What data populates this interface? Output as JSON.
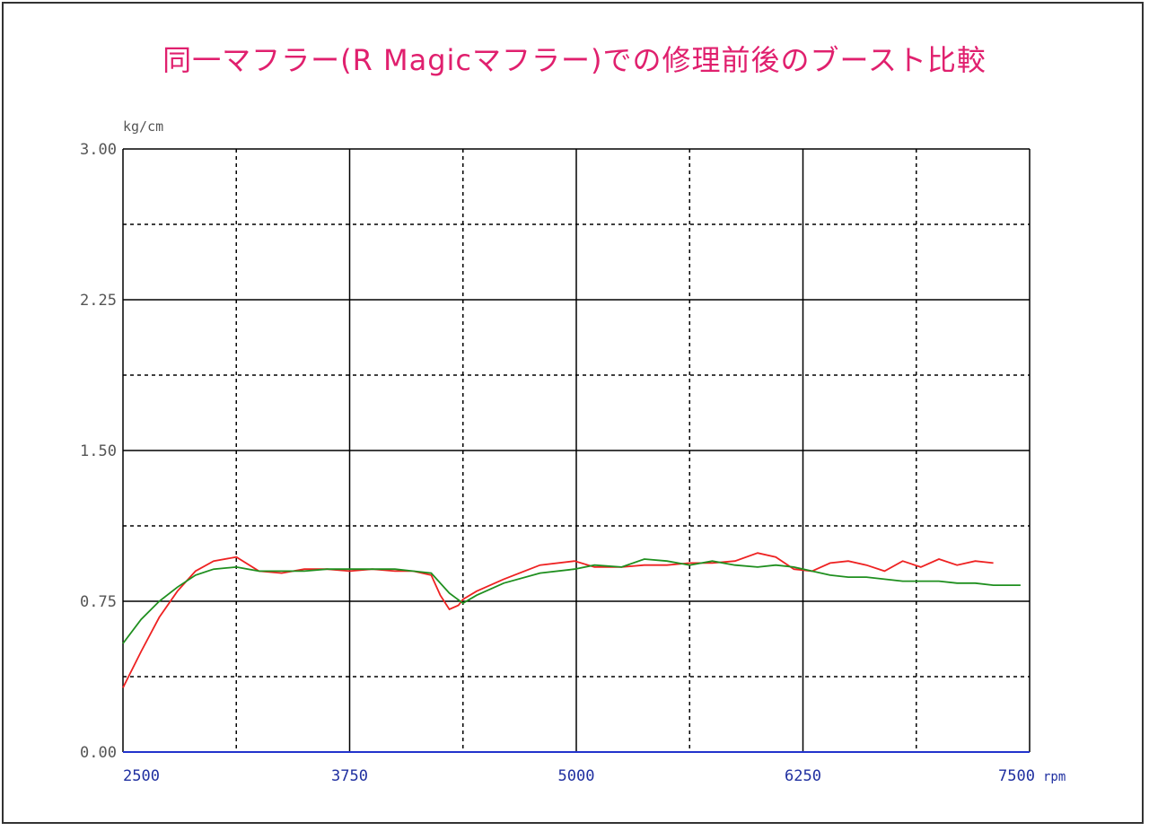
{
  "colors": {
    "title": "#e0206e",
    "axis_text": "#555555",
    "x_tick_text": "#1f2fa0",
    "grid": "#000000",
    "zero_line": "#2233cc",
    "series_red": "#ee2222",
    "series_green": "#1f8f1f"
  },
  "chart_data": {
    "type": "line",
    "title": "同一マフラー(R Magicマフラー)での修理前後のブースト比較",
    "ylabel": "kg/cm",
    "xlabel": "rpm",
    "xlim": [
      2500,
      7500
    ],
    "ylim": [
      0,
      3
    ],
    "x_ticks": [
      2500,
      3750,
      5000,
      6250,
      7500
    ],
    "x_tick_labels": [
      "2500",
      "3750",
      "5000",
      "6250",
      "7500"
    ],
    "y_ticks": [
      0,
      0.75,
      1.5,
      2.25,
      3.0
    ],
    "y_tick_labels": [
      "0.00",
      "0.75",
      "1.50",
      "2.25",
      "3.00"
    ],
    "minor_x_gridlines": [
      3125,
      4375,
      5625,
      6875
    ],
    "minor_y_gridlines": [
      0.375,
      1.125,
      1.875,
      2.625
    ],
    "grid": true,
    "series": [
      {
        "color": "#ee2222",
        "x": [
          2500,
          2600,
          2700,
          2800,
          2900,
          3000,
          3125,
          3250,
          3375,
          3500,
          3625,
          3750,
          3875,
          4000,
          4100,
          4200,
          4250,
          4300,
          4350,
          4375,
          4450,
          4600,
          4800,
          4990,
          5100,
          5250,
          5375,
          5500,
          5625,
          5750,
          5875,
          6000,
          6100,
          6200,
          6300,
          6400,
          6500,
          6600,
          6700,
          6800,
          6900,
          7000,
          7100,
          7200,
          7300
        ],
        "values": [
          0.32,
          0.5,
          0.67,
          0.8,
          0.9,
          0.95,
          0.97,
          0.9,
          0.89,
          0.91,
          0.91,
          0.9,
          0.91,
          0.9,
          0.9,
          0.88,
          0.78,
          0.71,
          0.73,
          0.76,
          0.8,
          0.86,
          0.93,
          0.95,
          0.92,
          0.92,
          0.93,
          0.93,
          0.94,
          0.94,
          0.95,
          0.99,
          0.97,
          0.91,
          0.9,
          0.94,
          0.95,
          0.93,
          0.9,
          0.95,
          0.92,
          0.96,
          0.93,
          0.95,
          0.94
        ]
      },
      {
        "color": "#1f8f1f",
        "x": [
          2500,
          2600,
          2700,
          2800,
          2900,
          3000,
          3125,
          3250,
          3375,
          3500,
          3625,
          3750,
          3875,
          4000,
          4100,
          4200,
          4300,
          4375,
          4450,
          4600,
          4800,
          4990,
          5100,
          5250,
          5375,
          5500,
          5625,
          5750,
          5875,
          6000,
          6100,
          6200,
          6300,
          6400,
          6500,
          6600,
          6700,
          6800,
          6900,
          7000,
          7100,
          7200,
          7300,
          7400,
          7450
        ],
        "values": [
          0.54,
          0.66,
          0.75,
          0.82,
          0.88,
          0.91,
          0.92,
          0.9,
          0.9,
          0.9,
          0.91,
          0.91,
          0.91,
          0.91,
          0.9,
          0.89,
          0.79,
          0.74,
          0.78,
          0.84,
          0.89,
          0.91,
          0.93,
          0.92,
          0.96,
          0.95,
          0.93,
          0.95,
          0.93,
          0.92,
          0.93,
          0.92,
          0.9,
          0.88,
          0.87,
          0.87,
          0.86,
          0.85,
          0.85,
          0.85,
          0.84,
          0.84,
          0.83,
          0.83,
          0.83
        ]
      }
    ]
  }
}
